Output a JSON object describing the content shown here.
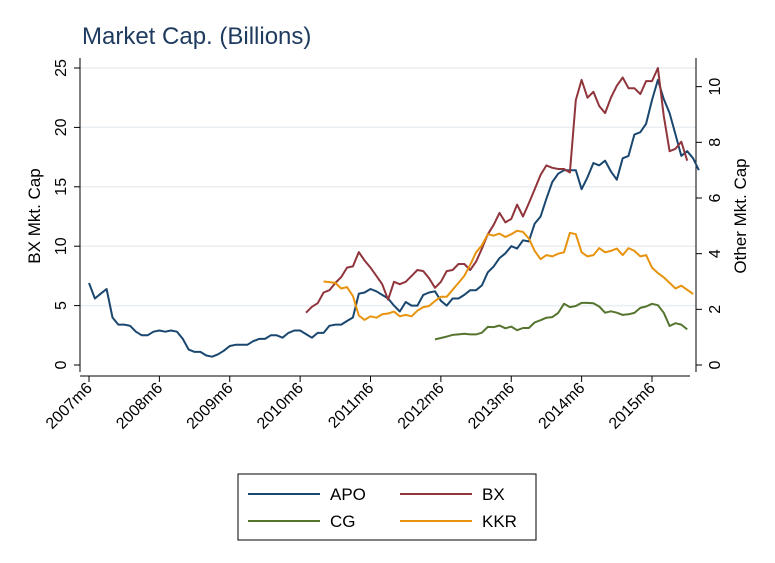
{
  "chart_data": {
    "type": "line",
    "title": "Market Cap. (Billions)",
    "ylabel_left": "BX Mkt. Cap",
    "ylabel_right": "Other Mkt. Cap",
    "xlabel": "",
    "x_ticks": [
      "2007m6",
      "2008m6",
      "2009m6",
      "2010m6",
      "2011m6",
      "2012m6",
      "2013m6",
      "2014m6",
      "2015m6"
    ],
    "y_left_ticks": [
      "0",
      "5",
      "10",
      "15",
      "20",
      "25"
    ],
    "y_right_ticks": [
      "0",
      "2",
      "4",
      "6",
      "8",
      "10"
    ],
    "ylim_left": [
      0,
      25
    ],
    "ylim_right": [
      0,
      10.67
    ],
    "xlim": [
      "2007-05",
      "2016-01"
    ],
    "grid": "horizontal, left axis",
    "legend_position": "bottom",
    "series": [
      {
        "name": "APO",
        "color": "#1a476f",
        "axis": "left",
        "points": [
          [
            "2007-06",
            6.9
          ],
          [
            "2007-07",
            5.6
          ],
          [
            "2007-08",
            6.0
          ],
          [
            "2007-09",
            6.4
          ],
          [
            "2007-10",
            4.0
          ],
          [
            "2007-11",
            3.4
          ],
          [
            "2007-12",
            3.4
          ],
          [
            "2008-01",
            3.3
          ],
          [
            "2008-02",
            2.8
          ],
          [
            "2008-03",
            2.5
          ],
          [
            "2008-04",
            2.5
          ],
          [
            "2008-05",
            2.8
          ],
          [
            "2008-06",
            2.9
          ],
          [
            "2008-07",
            2.8
          ],
          [
            "2008-08",
            2.9
          ],
          [
            "2008-09",
            2.8
          ],
          [
            "2008-10",
            2.2
          ],
          [
            "2008-11",
            1.3
          ],
          [
            "2008-12",
            1.1
          ],
          [
            "2009-01",
            1.1
          ],
          [
            "2009-02",
            0.8
          ],
          [
            "2009-03",
            0.7
          ],
          [
            "2009-04",
            0.9
          ],
          [
            "2009-05",
            1.2
          ],
          [
            "2009-06",
            1.6
          ],
          [
            "2009-07",
            1.7
          ],
          [
            "2009-08",
            1.7
          ],
          [
            "2009-09",
            1.7
          ],
          [
            "2009-10",
            2.0
          ],
          [
            "2009-11",
            2.2
          ],
          [
            "2009-12",
            2.2
          ],
          [
            "2010-01",
            2.5
          ],
          [
            "2010-02",
            2.5
          ],
          [
            "2010-03",
            2.3
          ],
          [
            "2010-04",
            2.7
          ],
          [
            "2010-05",
            2.9
          ],
          [
            "2010-06",
            2.9
          ],
          [
            "2010-07",
            2.6
          ],
          [
            "2010-08",
            2.3
          ],
          [
            "2010-09",
            2.7
          ],
          [
            "2010-10",
            2.7
          ],
          [
            "2010-11",
            3.3
          ],
          [
            "2010-12",
            3.4
          ],
          [
            "2011-01",
            3.4
          ],
          [
            "2011-02",
            3.7
          ],
          [
            "2011-03",
            4.0
          ],
          [
            "2011-04",
            6.0
          ],
          [
            "2011-05",
            6.1
          ],
          [
            "2011-06",
            6.4
          ],
          [
            "2011-07",
            6.2
          ],
          [
            "2011-08",
            5.9
          ],
          [
            "2011-09",
            5.6
          ],
          [
            "2011-10",
            5.0
          ],
          [
            "2011-11",
            4.5
          ],
          [
            "2011-12",
            5.3
          ],
          [
            "2012-01",
            5.0
          ],
          [
            "2012-02",
            5.0
          ],
          [
            "2012-03",
            5.9
          ],
          [
            "2012-04",
            6.1
          ],
          [
            "2012-05",
            6.2
          ],
          [
            "2012-06",
            5.4
          ],
          [
            "2012-07",
            5.0
          ],
          [
            "2012-08",
            5.6
          ],
          [
            "2012-09",
            5.6
          ],
          [
            "2012-10",
            5.9
          ],
          [
            "2012-11",
            6.3
          ],
          [
            "2012-12",
            6.3
          ],
          [
            "2013-01",
            6.7
          ],
          [
            "2013-02",
            7.8
          ],
          [
            "2013-03",
            8.3
          ],
          [
            "2013-04",
            9.0
          ],
          [
            "2013-05",
            9.4
          ],
          [
            "2013-06",
            10.0
          ],
          [
            "2013-07",
            9.8
          ],
          [
            "2013-08",
            10.5
          ],
          [
            "2013-09",
            10.4
          ],
          [
            "2013-10",
            11.9
          ],
          [
            "2013-11",
            12.5
          ],
          [
            "2013-12",
            14.0
          ],
          [
            "2014-01",
            15.4
          ],
          [
            "2014-02",
            16.1
          ],
          [
            "2014-03",
            16.4
          ],
          [
            "2014-04",
            16.4
          ],
          [
            "2014-05",
            16.4
          ],
          [
            "2014-06",
            14.8
          ],
          [
            "2014-07",
            15.8
          ],
          [
            "2014-08",
            17.0
          ],
          [
            "2014-09",
            16.8
          ],
          [
            "2014-10",
            17.2
          ],
          [
            "2014-11",
            16.3
          ],
          [
            "2014-12",
            15.6
          ],
          [
            "2015-01",
            17.4
          ],
          [
            "2015-02",
            17.6
          ],
          [
            "2015-03",
            19.4
          ],
          [
            "2015-04",
            19.6
          ],
          [
            "2015-05",
            20.3
          ],
          [
            "2015-06",
            22.3
          ],
          [
            "2015-07",
            24.0
          ],
          [
            "2015-08",
            22.4
          ],
          [
            "2015-09",
            21.2
          ],
          [
            "2015-10",
            19.4
          ],
          [
            "2015-11",
            17.6
          ],
          [
            "2015-12",
            18.0
          ],
          [
            "2016-01",
            17.4
          ],
          [
            "2016-02",
            16.4
          ]
        ]
      },
      {
        "name": "BX",
        "color": "#90353b",
        "axis": "left",
        "points": [
          [
            "2010-07",
            4.4
          ],
          [
            "2010-08",
            4.9
          ],
          [
            "2010-09",
            5.2
          ],
          [
            "2010-10",
            6.1
          ],
          [
            "2010-11",
            6.3
          ],
          [
            "2010-12",
            6.9
          ],
          [
            "2011-01",
            7.4
          ],
          [
            "2011-02",
            8.2
          ],
          [
            "2011-03",
            8.3
          ],
          [
            "2011-04",
            9.5
          ],
          [
            "2011-05",
            8.8
          ],
          [
            "2011-06",
            8.2
          ],
          [
            "2011-07",
            7.5
          ],
          [
            "2011-08",
            6.8
          ],
          [
            "2011-09",
            5.5
          ],
          [
            "2011-10",
            7.0
          ],
          [
            "2011-11",
            6.8
          ],
          [
            "2011-12",
            7.0
          ],
          [
            "2012-01",
            7.5
          ],
          [
            "2012-02",
            8.0
          ],
          [
            "2012-03",
            7.9
          ],
          [
            "2012-04",
            7.3
          ],
          [
            "2012-05",
            6.5
          ],
          [
            "2012-06",
            7.0
          ],
          [
            "2012-07",
            7.9
          ],
          [
            "2012-08",
            8.0
          ],
          [
            "2012-09",
            8.5
          ],
          [
            "2012-10",
            8.5
          ],
          [
            "2012-11",
            8.0
          ],
          [
            "2012-12",
            8.7
          ],
          [
            "2013-01",
            9.8
          ],
          [
            "2013-02",
            11.0
          ],
          [
            "2013-03",
            11.8
          ],
          [
            "2013-04",
            12.8
          ],
          [
            "2013-05",
            12.0
          ],
          [
            "2013-06",
            12.3
          ],
          [
            "2013-07",
            13.5
          ],
          [
            "2013-08",
            12.5
          ],
          [
            "2013-09",
            13.6
          ],
          [
            "2013-10",
            14.8
          ],
          [
            "2013-11",
            16.0
          ],
          [
            "2013-12",
            16.8
          ],
          [
            "2014-01",
            16.6
          ],
          [
            "2014-02",
            16.5
          ],
          [
            "2014-03",
            16.5
          ],
          [
            "2014-04",
            16.2
          ],
          [
            "2014-05",
            22.3
          ],
          [
            "2014-06",
            24.0
          ],
          [
            "2014-07",
            22.5
          ],
          [
            "2014-08",
            23.0
          ],
          [
            "2014-09",
            21.8
          ],
          [
            "2014-10",
            21.2
          ],
          [
            "2014-11",
            22.5
          ],
          [
            "2014-12",
            23.5
          ],
          [
            "2015-01",
            24.2
          ],
          [
            "2015-02",
            23.3
          ],
          [
            "2015-03",
            23.3
          ],
          [
            "2015-04",
            22.8
          ],
          [
            "2015-05",
            23.9
          ],
          [
            "2015-06",
            23.9
          ],
          [
            "2015-07",
            25.0
          ],
          [
            "2015-08",
            21.0
          ],
          [
            "2015-09",
            18.0
          ],
          [
            "2015-10",
            18.2
          ],
          [
            "2015-11",
            18.8
          ],
          [
            "2015-12",
            17.2
          ]
        ]
      },
      {
        "name": "CG",
        "color": "#55752f",
        "axis": "right",
        "points": [
          [
            "2012-05",
            0.92
          ],
          [
            "2012-06",
            0.97
          ],
          [
            "2012-07",
            1.02
          ],
          [
            "2012-08",
            1.08
          ],
          [
            "2012-09",
            1.1
          ],
          [
            "2012-10",
            1.12
          ],
          [
            "2012-11",
            1.1
          ],
          [
            "2012-12",
            1.1
          ],
          [
            "2013-01",
            1.16
          ],
          [
            "2013-02",
            1.37
          ],
          [
            "2013-03",
            1.36
          ],
          [
            "2013-04",
            1.42
          ],
          [
            "2013-05",
            1.32
          ],
          [
            "2013-06",
            1.38
          ],
          [
            "2013-07",
            1.25
          ],
          [
            "2013-08",
            1.33
          ],
          [
            "2013-09",
            1.33
          ],
          [
            "2013-10",
            1.53
          ],
          [
            "2013-11",
            1.61
          ],
          [
            "2013-12",
            1.7
          ],
          [
            "2014-01",
            1.72
          ],
          [
            "2014-02",
            1.87
          ],
          [
            "2014-03",
            2.2
          ],
          [
            "2014-04",
            2.08
          ],
          [
            "2014-05",
            2.12
          ],
          [
            "2014-06",
            2.23
          ],
          [
            "2014-07",
            2.23
          ],
          [
            "2014-08",
            2.22
          ],
          [
            "2014-09",
            2.1
          ],
          [
            "2014-10",
            1.88
          ],
          [
            "2014-11",
            1.93
          ],
          [
            "2014-12",
            1.88
          ],
          [
            "2015-01",
            1.8
          ],
          [
            "2015-02",
            1.82
          ],
          [
            "2015-03",
            1.87
          ],
          [
            "2015-04",
            2.05
          ],
          [
            "2015-05",
            2.1
          ],
          [
            "2015-06",
            2.2
          ],
          [
            "2015-07",
            2.15
          ],
          [
            "2015-08",
            1.88
          ],
          [
            "2015-09",
            1.4
          ],
          [
            "2015-10",
            1.5
          ],
          [
            "2015-11",
            1.45
          ],
          [
            "2015-12",
            1.28
          ]
        ]
      },
      {
        "name": "KKR",
        "color": "#e8930e",
        "axis": "right",
        "points": [
          [
            "2010-10",
            3.0
          ],
          [
            "2010-11",
            2.98
          ],
          [
            "2010-12",
            2.95
          ],
          [
            "2011-01",
            2.75
          ],
          [
            "2011-02",
            2.8
          ],
          [
            "2011-03",
            2.48
          ],
          [
            "2011-04",
            1.78
          ],
          [
            "2011-05",
            1.62
          ],
          [
            "2011-06",
            1.75
          ],
          [
            "2011-07",
            1.7
          ],
          [
            "2011-08",
            1.82
          ],
          [
            "2011-09",
            1.85
          ],
          [
            "2011-10",
            1.92
          ],
          [
            "2011-11",
            1.75
          ],
          [
            "2011-12",
            1.8
          ],
          [
            "2012-01",
            1.75
          ],
          [
            "2012-02",
            1.95
          ],
          [
            "2012-03",
            2.08
          ],
          [
            "2012-04",
            2.12
          ],
          [
            "2012-05",
            2.3
          ],
          [
            "2012-06",
            2.45
          ],
          [
            "2012-07",
            2.45
          ],
          [
            "2012-08",
            2.7
          ],
          [
            "2012-09",
            2.95
          ],
          [
            "2012-10",
            3.2
          ],
          [
            "2012-11",
            3.6
          ],
          [
            "2012-12",
            4.05
          ],
          [
            "2013-01",
            4.3
          ],
          [
            "2013-02",
            4.7
          ],
          [
            "2013-03",
            4.65
          ],
          [
            "2013-04",
            4.72
          ],
          [
            "2013-05",
            4.6
          ],
          [
            "2013-06",
            4.7
          ],
          [
            "2013-07",
            4.82
          ],
          [
            "2013-08",
            4.78
          ],
          [
            "2013-09",
            4.55
          ],
          [
            "2013-10",
            4.1
          ],
          [
            "2013-11",
            3.8
          ],
          [
            "2013-12",
            3.95
          ],
          [
            "2014-01",
            3.9
          ],
          [
            "2014-02",
            4.0
          ],
          [
            "2014-03",
            4.05
          ],
          [
            "2014-04",
            4.75
          ],
          [
            "2014-05",
            4.7
          ],
          [
            "2014-06",
            4.05
          ],
          [
            "2014-07",
            3.9
          ],
          [
            "2014-08",
            3.95
          ],
          [
            "2014-09",
            4.2
          ],
          [
            "2014-10",
            4.05
          ],
          [
            "2014-11",
            4.1
          ],
          [
            "2014-12",
            4.18
          ],
          [
            "2015-01",
            3.95
          ],
          [
            "2015-02",
            4.2
          ],
          [
            "2015-03",
            4.1
          ],
          [
            "2015-04",
            3.9
          ],
          [
            "2015-05",
            3.95
          ],
          [
            "2015-06",
            3.5
          ],
          [
            "2015-07",
            3.3
          ],
          [
            "2015-08",
            3.15
          ],
          [
            "2015-09",
            2.95
          ],
          [
            "2015-10",
            2.75
          ],
          [
            "2015-11",
            2.85
          ],
          [
            "2015-12",
            2.7
          ],
          [
            "2016-01",
            2.55
          ]
        ]
      }
    ]
  }
}
